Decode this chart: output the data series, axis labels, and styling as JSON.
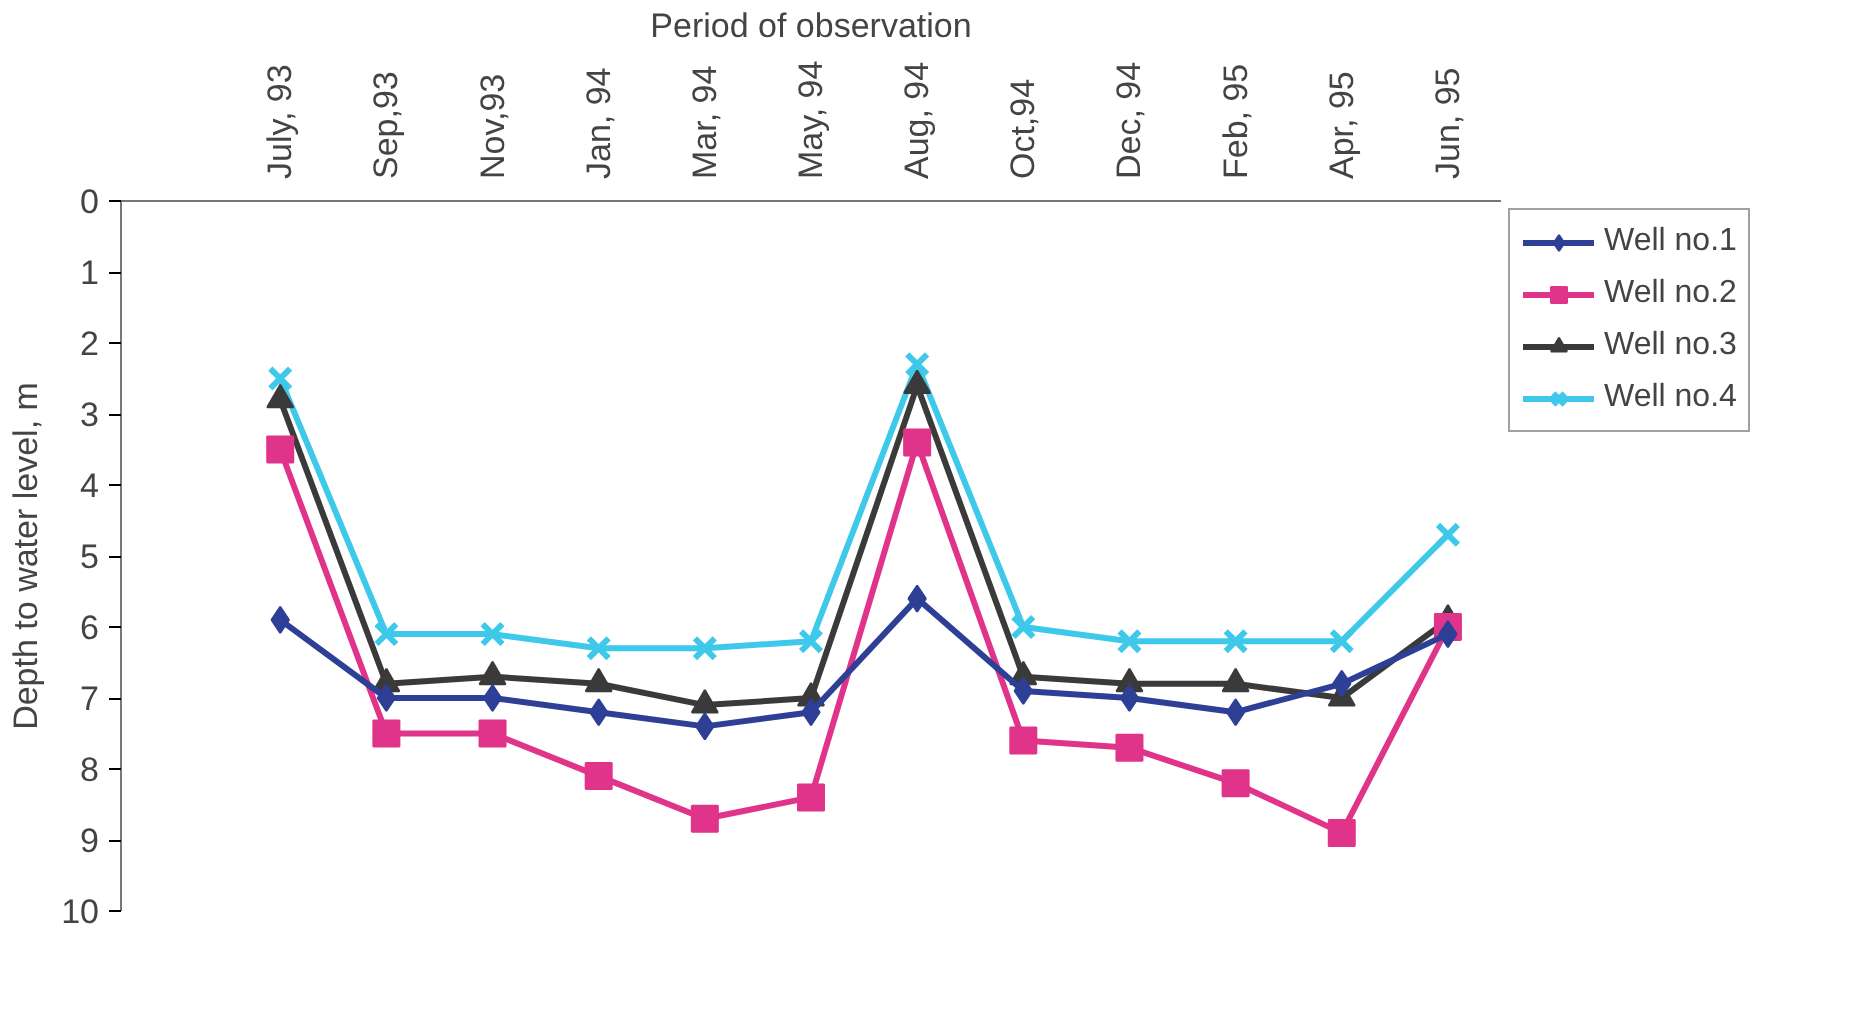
{
  "chart_data": {
    "type": "line",
    "xlabel": "Period of observation",
    "ylabel": "Depth to water level, m",
    "categories": [
      null,
      "July, 93",
      "Sep,93",
      "Nov,93",
      "Jan, 94",
      "Mar, 94",
      "May, 94",
      "Aug, 94",
      "Oct,94",
      "Dec, 94",
      "Feb, 95",
      "Apr, 95",
      "Jun, 95"
    ],
    "ylim": [
      10,
      0
    ],
    "yticks": [
      0,
      1,
      2,
      3,
      4,
      5,
      6,
      7,
      8,
      9,
      10
    ],
    "grid": false,
    "legend": "right",
    "series": [
      {
        "name": "Well no.1",
        "color": "#2e3f96",
        "marker": "diamond",
        "values": [
          null,
          5.9,
          7.0,
          7.0,
          7.2,
          7.4,
          7.2,
          5.6,
          6.9,
          7.0,
          7.2,
          6.8,
          6.1
        ]
      },
      {
        "name": "Well no.2",
        "color": "#e0338a",
        "marker": "square",
        "values": [
          null,
          3.5,
          7.5,
          7.5,
          8.1,
          8.7,
          8.4,
          3.4,
          7.6,
          7.7,
          8.2,
          8.9,
          6.0
        ]
      },
      {
        "name": "Well no.3",
        "color": "#3a3a3a",
        "marker": "triangle",
        "values": [
          null,
          2.8,
          6.8,
          6.7,
          6.8,
          7.1,
          7.0,
          2.6,
          6.7,
          6.8,
          6.8,
          7.0,
          5.9
        ]
      },
      {
        "name": "Well no.4",
        "color": "#3ec8ea",
        "marker": "cross",
        "values": [
          null,
          2.5,
          6.1,
          6.1,
          6.3,
          6.3,
          6.2,
          2.3,
          6.0,
          6.2,
          6.2,
          6.2,
          4.7
        ]
      }
    ]
  }
}
